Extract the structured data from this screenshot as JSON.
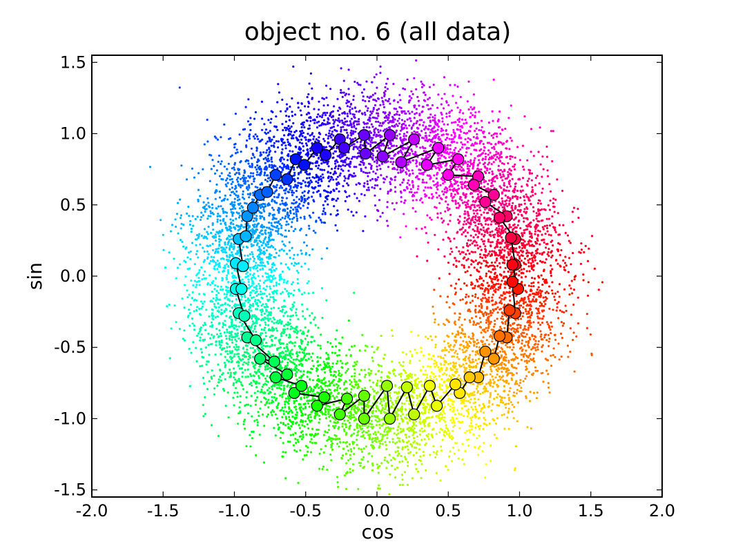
{
  "chart_data": {
    "type": "scatter",
    "title": "object no. 6 (all data)",
    "xlabel": "cos",
    "ylabel": "sin",
    "xlim": [
      -2.0,
      2.0
    ],
    "ylim": [
      -1.55,
      1.55
    ],
    "x_ticks": [
      -2.0,
      -1.5,
      -1.0,
      -0.5,
      0.0,
      0.5,
      1.0,
      1.5,
      2.0
    ],
    "x_tick_labels": [
      "-2.0",
      "-1.5",
      "-1.0",
      "-0.5",
      "0.0",
      "0.5",
      "1.0",
      "1.5",
      "2.0"
    ],
    "y_ticks": [
      -1.5,
      -1.0,
      -0.5,
      0.0,
      0.5,
      1.0,
      1.5
    ],
    "y_tick_labels": [
      "-1.5",
      "-1.0",
      "-0.5",
      "0.0",
      "0.5",
      "1.0",
      "1.5"
    ],
    "grid": false,
    "series": [
      {
        "kind": "scatter-cloud",
        "color_by": "angle (hue wheel)",
        "ring_radius": 1.0,
        "approx_spread": 0.2,
        "approx_count": 9000
      },
      {
        "kind": "connected-markers",
        "color_by": "angle (hue wheel)",
        "line_color": "#000000",
        "points": [
          {
            "x": 0.97,
            "y": 0.08
          },
          {
            "x": 0.95,
            "y": 0.08
          },
          {
            "x": 0.99,
            "y": -0.09
          },
          {
            "x": 0.95,
            "y": -0.04
          },
          {
            "x": 0.97,
            "y": -0.26
          },
          {
            "x": 0.93,
            "y": -0.24
          },
          {
            "x": 0.91,
            "y": -0.43
          },
          {
            "x": 0.86,
            "y": -0.42
          },
          {
            "x": 0.82,
            "y": -0.58
          },
          {
            "x": 0.76,
            "y": -0.53
          },
          {
            "x": 0.71,
            "y": -0.71
          },
          {
            "x": 0.65,
            "y": -0.71
          },
          {
            "x": 0.58,
            "y": -0.82
          },
          {
            "x": 0.55,
            "y": -0.76
          },
          {
            "x": 0.42,
            "y": -0.91
          },
          {
            "x": 0.37,
            "y": -0.77
          },
          {
            "x": 0.26,
            "y": -0.97
          },
          {
            "x": 0.21,
            "y": -0.78
          },
          {
            "x": 0.09,
            "y": -1.0
          },
          {
            "x": 0.07,
            "y": -0.77
          },
          {
            "x": -0.09,
            "y": -1.0
          },
          {
            "x": -0.09,
            "y": -0.84
          },
          {
            "x": -0.26,
            "y": -0.97
          },
          {
            "x": -0.21,
            "y": -0.86
          },
          {
            "x": -0.42,
            "y": -0.91
          },
          {
            "x": -0.37,
            "y": -0.85
          },
          {
            "x": -0.58,
            "y": -0.82
          },
          {
            "x": -0.53,
            "y": -0.77
          },
          {
            "x": -0.71,
            "y": -0.71
          },
          {
            "x": -0.63,
            "y": -0.69
          },
          {
            "x": -0.82,
            "y": -0.58
          },
          {
            "x": -0.72,
            "y": -0.6
          },
          {
            "x": -0.91,
            "y": -0.43
          },
          {
            "x": -0.85,
            "y": -0.45
          },
          {
            "x": -0.97,
            "y": -0.26
          },
          {
            "x": -0.93,
            "y": -0.28
          },
          {
            "x": -0.99,
            "y": -0.09
          },
          {
            "x": -0.95,
            "y": -0.09
          },
          {
            "x": -0.99,
            "y": 0.09
          },
          {
            "x": -0.94,
            "y": 0.07
          },
          {
            "x": -0.97,
            "y": 0.26
          },
          {
            "x": -0.92,
            "y": 0.28
          },
          {
            "x": -0.91,
            "y": 0.42
          },
          {
            "x": -0.87,
            "y": 0.48
          },
          {
            "x": -0.82,
            "y": 0.57
          },
          {
            "x": -0.77,
            "y": 0.59
          },
          {
            "x": -0.71,
            "y": 0.71
          },
          {
            "x": -0.63,
            "y": 0.68
          },
          {
            "x": -0.57,
            "y": 0.82
          },
          {
            "x": -0.51,
            "y": 0.78
          },
          {
            "x": -0.42,
            "y": 0.9
          },
          {
            "x": -0.36,
            "y": 0.85
          },
          {
            "x": -0.26,
            "y": 0.96
          },
          {
            "x": -0.23,
            "y": 0.9
          },
          {
            "x": -0.09,
            "y": 0.99
          },
          {
            "x": -0.08,
            "y": 0.86
          },
          {
            "x": 0.09,
            "y": 0.99
          },
          {
            "x": 0.04,
            "y": 0.84
          },
          {
            "x": 0.26,
            "y": 0.96
          },
          {
            "x": 0.17,
            "y": 0.8
          },
          {
            "x": 0.43,
            "y": 0.9
          },
          {
            "x": 0.35,
            "y": 0.78
          },
          {
            "x": 0.57,
            "y": 0.82
          },
          {
            "x": 0.5,
            "y": 0.71
          },
          {
            "x": 0.71,
            "y": 0.7
          },
          {
            "x": 0.68,
            "y": 0.64
          },
          {
            "x": 0.82,
            "y": 0.57
          },
          {
            "x": 0.76,
            "y": 0.52
          },
          {
            "x": 0.91,
            "y": 0.42
          },
          {
            "x": 0.86,
            "y": 0.41
          },
          {
            "x": 0.97,
            "y": 0.26
          },
          {
            "x": 0.94,
            "y": 0.27
          }
        ]
      }
    ]
  }
}
